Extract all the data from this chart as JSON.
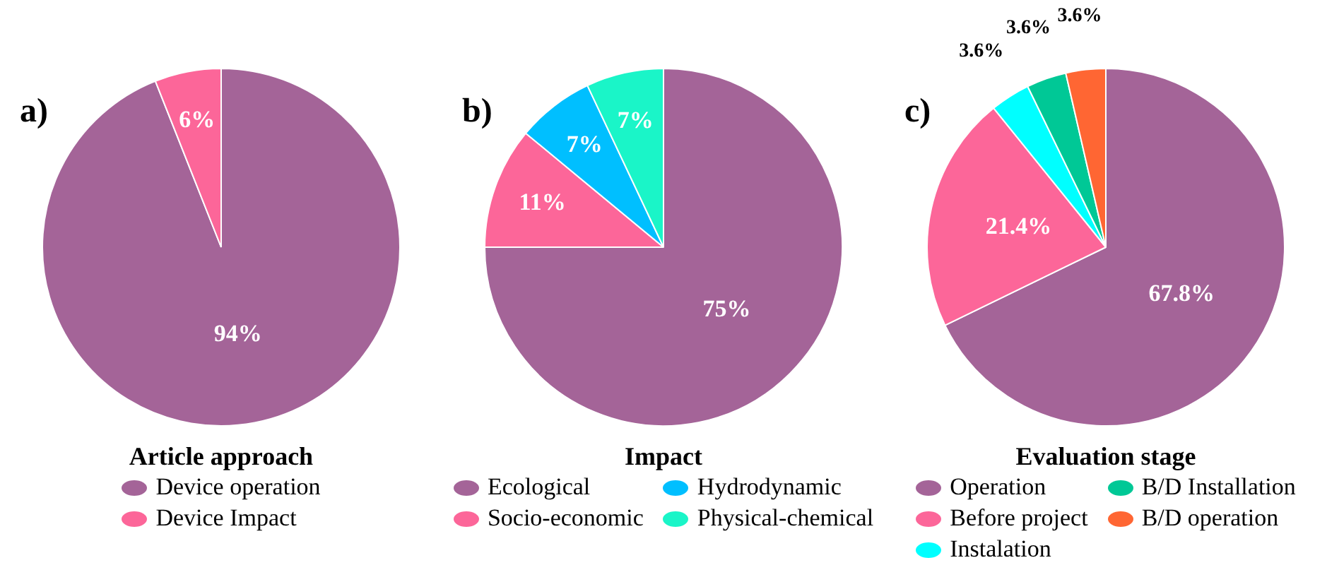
{
  "chart_data": [
    {
      "type": "pie",
      "title": "Article approach",
      "annotations": [
        "a)"
      ],
      "categories": [
        "Device operation",
        "Device Impact"
      ],
      "values": [
        94,
        6
      ],
      "colors": [
        "#a46498",
        "#fc6699"
      ],
      "value_labels": [
        "94%",
        "6%"
      ],
      "legend": "bottom"
    },
    {
      "type": "pie",
      "title": "Impact",
      "annotations": [
        "b)"
      ],
      "categories": [
        "Ecological",
        "Socio-economic",
        "Hydrodynamic",
        "Physical-chemical"
      ],
      "values": [
        75,
        11,
        7,
        7
      ],
      "colors": [
        "#a46498",
        "#fc6699",
        "#00bfff",
        "#1af5c8"
      ],
      "value_labels": [
        "75%",
        "11%",
        "7%",
        "7%"
      ],
      "legend": "bottom"
    },
    {
      "type": "pie",
      "title": "Evaluation stage",
      "annotations": [
        "c)"
      ],
      "categories": [
        "Operation",
        "Before project",
        "Instalation",
        "B/D Installation",
        "B/D operation"
      ],
      "values": [
        67.8,
        21.4,
        3.6,
        3.6,
        3.6
      ],
      "colors": [
        "#a46498",
        "#fc6699",
        "#00ffff",
        "#00c896",
        "#ff6633"
      ],
      "value_labels": [
        "67.8%",
        "21.4%",
        "3.6%",
        "3.6%",
        "3.6%"
      ],
      "legend": "bottom"
    }
  ]
}
